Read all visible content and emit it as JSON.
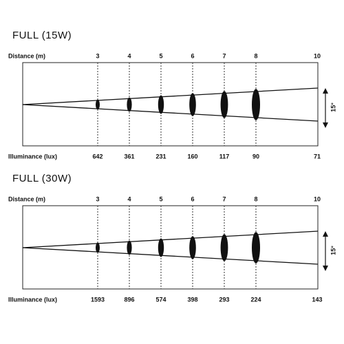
{
  "panels": [
    {
      "title": "FULL (15W)",
      "distance_label": "Distance (m)",
      "illuminance_label": "Illuminance (lux)",
      "angle": "15°",
      "distances": [
        3,
        4,
        5,
        6,
        7,
        8,
        10
      ],
      "illuminance": [
        642,
        361,
        231,
        160,
        117,
        90,
        71
      ]
    },
    {
      "title": "FULL (30W)",
      "distance_label": "Distance (m)",
      "illuminance_label": "Illuminance (lux)",
      "angle": "15°",
      "distances": [
        3,
        4,
        5,
        6,
        7,
        8,
        10
      ],
      "illuminance": [
        1593,
        896,
        574,
        398,
        293,
        224,
        143
      ]
    }
  ]
}
